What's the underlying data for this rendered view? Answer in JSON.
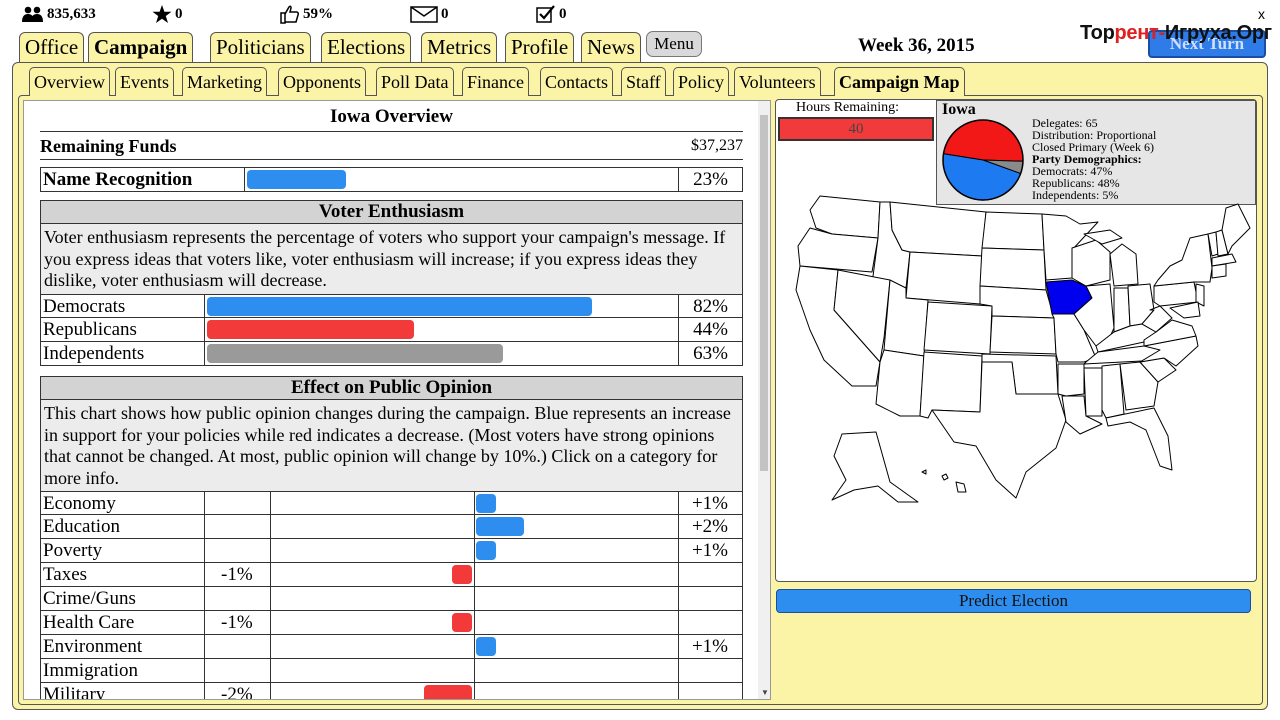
{
  "stats": {
    "followers": "835,633",
    "stars": "0",
    "approval": "59%",
    "mail": "0",
    "tasks": "0"
  },
  "watermark": {
    "part1": "Тор",
    "part2": "рент-",
    "part3": "Игруха.Орг"
  },
  "close_label": "x",
  "next_turn_label": "Next Turn",
  "week_label": "Week 36, 2015",
  "main_tabs": [
    "Office",
    "Campaign",
    "Politicians",
    "Elections",
    "Metrics",
    "Profile",
    "News"
  ],
  "menu_label": "Menu",
  "sub_tabs": [
    "Overview",
    "Events",
    "Marketing",
    "Opponents",
    "Poll Data",
    "Finance",
    "Contacts",
    "Staff",
    "Policy",
    "Volunteers",
    "Campaign Map"
  ],
  "overview": {
    "title": "Iowa Overview",
    "funds_label": "Remaining Funds",
    "funds_value": "$37,237",
    "name_recognition_label": "Name Recognition",
    "name_recognition_value": "23%",
    "name_recognition_fraction": 0.23
  },
  "enthusiasm": {
    "title": "Voter Enthusiasm",
    "description": "Voter enthusiasm represents the percentage of voters who support your campaign's message. If you express ideas that voters like, voter enthusiasm will increase; if you express ideas they dislike, voter enthusiasm will decrease.",
    "rows": [
      {
        "label": "Democrats",
        "value": "82%",
        "fraction": 0.82,
        "color": "#2e8ef0"
      },
      {
        "label": "Republicans",
        "value": "44%",
        "fraction": 0.44,
        "color": "#f23a3a"
      },
      {
        "label": "Independents",
        "value": "63%",
        "fraction": 0.63,
        "color": "#9a9a9a"
      }
    ]
  },
  "opinion": {
    "title": "Effect on Public Opinion",
    "description": "This chart shows how public opinion changes during the campaign. Blue represents an increase in support for your policies while red indicates a decrease. (Most voters have strong opinions that cannot be changed. At most, public opinion will change by 10%.) Click on a category for more info.",
    "rows": [
      {
        "label": "Economy",
        "neg": "",
        "pos": "+1%",
        "change": 1
      },
      {
        "label": "Education",
        "neg": "",
        "pos": "+2%",
        "change": 2
      },
      {
        "label": "Poverty",
        "neg": "",
        "pos": "+1%",
        "change": 1
      },
      {
        "label": "Taxes",
        "neg": "-1%",
        "pos": "",
        "change": -1
      },
      {
        "label": "Crime/Guns",
        "neg": "",
        "pos": "",
        "change": 0
      },
      {
        "label": "Health Care",
        "neg": "-1%",
        "pos": "",
        "change": -1
      },
      {
        "label": "Environment",
        "neg": "",
        "pos": "+1%",
        "change": 1
      },
      {
        "label": "Immigration",
        "neg": "",
        "pos": "",
        "change": 0
      },
      {
        "label": "Military",
        "neg": "-2%",
        "pos": "",
        "change": -2
      }
    ]
  },
  "map": {
    "hours_label": "Hours Remaining:",
    "hours_value": "40",
    "state_name": "Iowa",
    "delegates": "Delegates: 65",
    "distribution": "Distribution: Proportional",
    "primary": "Closed Primary (Week 6)",
    "demographics_label": "Party Demographics:",
    "democrats": "Democrats: 47%",
    "republicans": "Republicans: 48%",
    "independents": "Independents: 5%",
    "pie_colors": {
      "democrats": "#1e7af0",
      "republicans": "#f21818",
      "independents": "#8a8a8a"
    },
    "pie_fractions": {
      "democrats": 0.47,
      "republicans": 0.48,
      "independents": 0.05
    },
    "highlight_color": "#0000ee",
    "predict_label": "Predict Election"
  }
}
